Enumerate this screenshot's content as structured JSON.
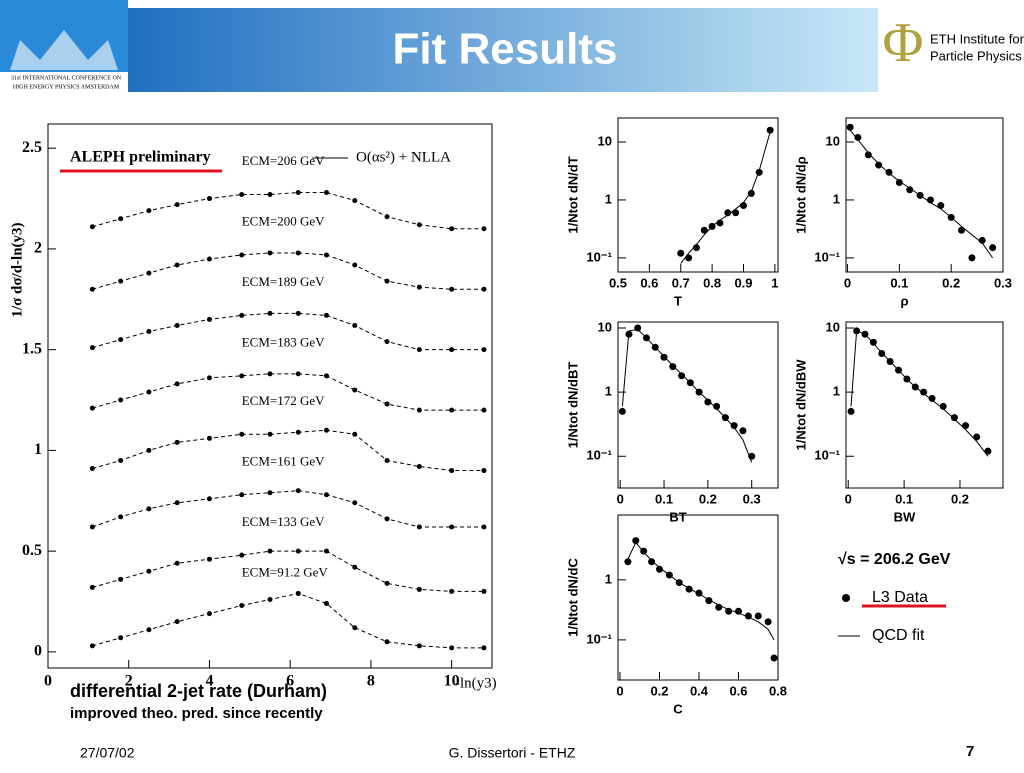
{
  "header": {
    "title": "Fit Results",
    "conference": [
      "31st INTERNATIONAL CONFERENCE ON",
      "HIGH ENERGY PHYSICS AMSTERDAM"
    ],
    "institute": [
      "ETH Institute for",
      "Particle Physics"
    ]
  },
  "caption": [
    "differential 2-jet rate (Durham)",
    "improved theo. pred. since recently"
  ],
  "legend": {
    "energy": "√s = 206.2 GeV",
    "data": "L3 Data",
    "fit": "QCD fit"
  },
  "footer": {
    "date": "27/07/02",
    "author": "G. Dissertori - ETHZ",
    "page": "7"
  },
  "chart_data": [
    {
      "type": "line",
      "title": "ALEPH preliminary",
      "fit_label": "O(αs²) + NLLA",
      "xlabel": "-ln(y3)",
      "ylabel": "1/σ dσ/d-ln(y3)",
      "x": [
        1.1,
        1.8,
        2.5,
        3.2,
        4,
        4.8,
        5.5,
        6.2,
        6.9,
        7.6,
        8.4,
        9.2,
        10,
        10.8
      ],
      "xlim": [
        0,
        11
      ],
      "ylim": [
        -0.08,
        2.62
      ],
      "xticks": [
        0,
        2,
        4,
        6,
        8,
        10
      ],
      "yticks": [
        0,
        0.5,
        1,
        1.5,
        2,
        2.5
      ],
      "series": [
        {
          "name": "ECM=206 GeV",
          "color": "#000000",
          "values": [
            2.11,
            2.15,
            2.19,
            2.22,
            2.25,
            2.27,
            2.27,
            2.28,
            2.28,
            2.24,
            2.16,
            2.12,
            2.1,
            2.1
          ]
        },
        {
          "name": "ECM=200 GeV",
          "color": "#000000",
          "values": [
            1.8,
            1.84,
            1.88,
            1.92,
            1.95,
            1.97,
            1.98,
            1.98,
            1.97,
            1.92,
            1.84,
            1.81,
            1.8,
            1.8
          ]
        },
        {
          "name": "ECM=189 GeV",
          "color": "#000000",
          "values": [
            1.51,
            1.55,
            1.59,
            1.62,
            1.65,
            1.67,
            1.68,
            1.68,
            1.67,
            1.62,
            1.54,
            1.5,
            1.5,
            1.5
          ]
        },
        {
          "name": "ECM=183 GeV",
          "color": "#000000",
          "values": [
            1.21,
            1.25,
            1.29,
            1.33,
            1.36,
            1.37,
            1.38,
            1.38,
            1.37,
            1.3,
            1.23,
            1.2,
            1.2,
            1.2
          ]
        },
        {
          "name": "ECM=172 GeV",
          "color": "#000000",
          "values": [
            0.91,
            0.95,
            1.0,
            1.04,
            1.06,
            1.08,
            1.08,
            1.09,
            1.1,
            1.08,
            0.95,
            0.92,
            0.9,
            0.9
          ]
        },
        {
          "name": "ECM=161 GeV",
          "color": "#000000",
          "values": [
            0.62,
            0.67,
            0.71,
            0.74,
            0.76,
            0.78,
            0.79,
            0.8,
            0.78,
            0.74,
            0.66,
            0.62,
            0.62,
            0.62
          ]
        },
        {
          "name": "ECM=133 GeV",
          "color": "#000000",
          "values": [
            0.32,
            0.36,
            0.4,
            0.44,
            0.46,
            0.48,
            0.5,
            0.5,
            0.5,
            0.42,
            0.34,
            0.31,
            0.3,
            0.3
          ]
        },
        {
          "name": "ECM=91.2 GeV",
          "color": "#000000",
          "values": [
            0.03,
            0.07,
            0.11,
            0.15,
            0.19,
            0.23,
            0.26,
            0.29,
            0.24,
            0.12,
            0.05,
            0.03,
            0.02,
            0.02
          ]
        }
      ]
    },
    {
      "type": "scatter",
      "log_y": true,
      "xlabel": "T",
      "ylabel": "1/Ntot dN/dT",
      "x": [
        0.7,
        0.725,
        0.75,
        0.775,
        0.8,
        0.825,
        0.85,
        0.875,
        0.9,
        0.925,
        0.95,
        0.985
      ],
      "xlim": [
        0.5,
        1.01
      ],
      "ylim": [
        0.057,
        26
      ],
      "xticks": [
        0.5,
        0.6,
        0.7,
        0.8,
        0.9,
        1
      ],
      "yticks": [
        10,
        1,
        {
          "value": 0.1,
          "label": "10⁻¹"
        }
      ],
      "series": [
        {
          "name": "L3 Data",
          "color": "#000000",
          "values": [
            0.12,
            0.1,
            0.15,
            0.3,
            0.35,
            0.4,
            0.6,
            0.6,
            0.8,
            1.3,
            3,
            16
          ]
        },
        {
          "name": "QCD fit",
          "color": "#000000",
          "values": [
            0.08,
            0.12,
            0.17,
            0.25,
            0.35,
            0.45,
            0.55,
            0.7,
            0.9,
            1.4,
            3.2,
            15
          ]
        }
      ]
    },
    {
      "type": "scatter",
      "log_y": true,
      "xlabel": "ρ",
      "ylabel": "1/Ntot dN/dρ",
      "x": [
        0.005,
        0.02,
        0.04,
        0.06,
        0.08,
        0.1,
        0.12,
        0.14,
        0.16,
        0.18,
        0.2,
        0.22,
        0.24,
        0.26,
        0.28
      ],
      "xlim": [
        -0.003,
        0.3
      ],
      "ylim": [
        0.057,
        26
      ],
      "xticks": [
        0,
        0.1,
        0.2,
        0.3
      ],
      "yticks": [
        10,
        1,
        {
          "value": 0.1,
          "label": "10⁻¹"
        }
      ],
      "series": [
        {
          "name": "L3 Data",
          "color": "#000000",
          "values": [
            18,
            12,
            6,
            4,
            3,
            2,
            1.5,
            1.2,
            1,
            0.8,
            0.5,
            0.3,
            0.1,
            0.2,
            0.15
          ]
        },
        {
          "name": "QCD fit",
          "color": "#000000",
          "values": [
            16,
            11,
            6.5,
            4.2,
            2.9,
            2.1,
            1.6,
            1.2,
            0.9,
            0.7,
            0.5,
            0.35,
            0.25,
            0.18,
            0.1
          ]
        }
      ]
    },
    {
      "type": "scatter",
      "log_y": true,
      "xlabel": "BT",
      "ylabel": "1/Ntot dN/dBT",
      "x": [
        0.005,
        0.02,
        0.04,
        0.06,
        0.08,
        0.1,
        0.12,
        0.14,
        0.16,
        0.18,
        0.2,
        0.22,
        0.24,
        0.26,
        0.28,
        0.3
      ],
      "xlim": [
        -0.005,
        0.36
      ],
      "ylim": [
        0.032,
        12.4
      ],
      "xticks": [
        0,
        0.1,
        0.2,
        0.3
      ],
      "yticks": [
        10,
        1,
        {
          "value": 0.1,
          "label": "10⁻¹"
        }
      ],
      "series": [
        {
          "name": "L3 Data",
          "color": "#000000",
          "values": [
            0.5,
            8,
            10,
            7,
            5,
            3.5,
            2.5,
            1.8,
            1.4,
            1,
            0.7,
            0.6,
            0.4,
            0.3,
            0.25,
            0.1
          ]
        },
        {
          "name": "QCD fit",
          "color": "#000000",
          "values": [
            0.6,
            9,
            9.5,
            7,
            5,
            3.6,
            2.6,
            1.9,
            1.4,
            1,
            0.75,
            0.55,
            0.4,
            0.28,
            0.18,
            0.08
          ]
        }
      ]
    },
    {
      "type": "scatter",
      "log_y": true,
      "xlabel": "BW",
      "ylabel": "1/Ntot dN/dBW",
      "x": [
        0.005,
        0.015,
        0.03,
        0.045,
        0.06,
        0.075,
        0.09,
        0.105,
        0.12,
        0.135,
        0.15,
        0.17,
        0.19,
        0.21,
        0.23,
        0.25
      ],
      "xlim": [
        -0.004,
        0.277
      ],
      "ylim": [
        0.032,
        12.4
      ],
      "xticks": [
        0,
        0.1,
        0.2
      ],
      "yticks": [
        10,
        1,
        {
          "value": 0.1,
          "label": "10⁻¹"
        }
      ],
      "series": [
        {
          "name": "L3 Data",
          "color": "#000000",
          "values": [
            0.5,
            9,
            8,
            6,
            4,
            3,
            2.2,
            1.6,
            1.2,
            1,
            0.8,
            0.6,
            0.4,
            0.3,
            0.2,
            0.12
          ]
        },
        {
          "name": "QCD fit",
          "color": "#000000",
          "values": [
            0.6,
            9,
            8,
            5.8,
            4.1,
            3,
            2.2,
            1.6,
            1.2,
            0.95,
            0.75,
            0.55,
            0.38,
            0.26,
            0.17,
            0.1
          ]
        }
      ]
    },
    {
      "type": "scatter",
      "log_y": true,
      "xlabel": "C",
      "ylabel": "1/Ntot dN/dC",
      "x": [
        0.04,
        0.08,
        0.12,
        0.16,
        0.2,
        0.25,
        0.3,
        0.35,
        0.4,
        0.45,
        0.5,
        0.55,
        0.6,
        0.65,
        0.7,
        0.75,
        0.78
      ],
      "xlim": [
        -0.01,
        0.8
      ],
      "ylim": [
        0.0215,
        12
      ],
      "xticks": [
        0,
        0.2,
        0.4,
        0.6,
        0.8
      ],
      "yticks": [
        1,
        {
          "value": 0.1,
          "label": "10⁻¹"
        }
      ],
      "series": [
        {
          "name": "L3 Data",
          "color": "#000000",
          "values": [
            2,
            4.5,
            3,
            2,
            1.5,
            1.2,
            0.9,
            0.7,
            0.6,
            0.45,
            0.35,
            0.3,
            0.3,
            0.25,
            0.25,
            0.2,
            0.05
          ]
        },
        {
          "name": "QCD fit",
          "color": "#000000",
          "values": [
            2.2,
            4.2,
            2.9,
            2.1,
            1.6,
            1.2,
            0.9,
            0.72,
            0.58,
            0.47,
            0.38,
            0.32,
            0.28,
            0.24,
            0.2,
            0.15,
            0.1
          ]
        }
      ]
    }
  ]
}
